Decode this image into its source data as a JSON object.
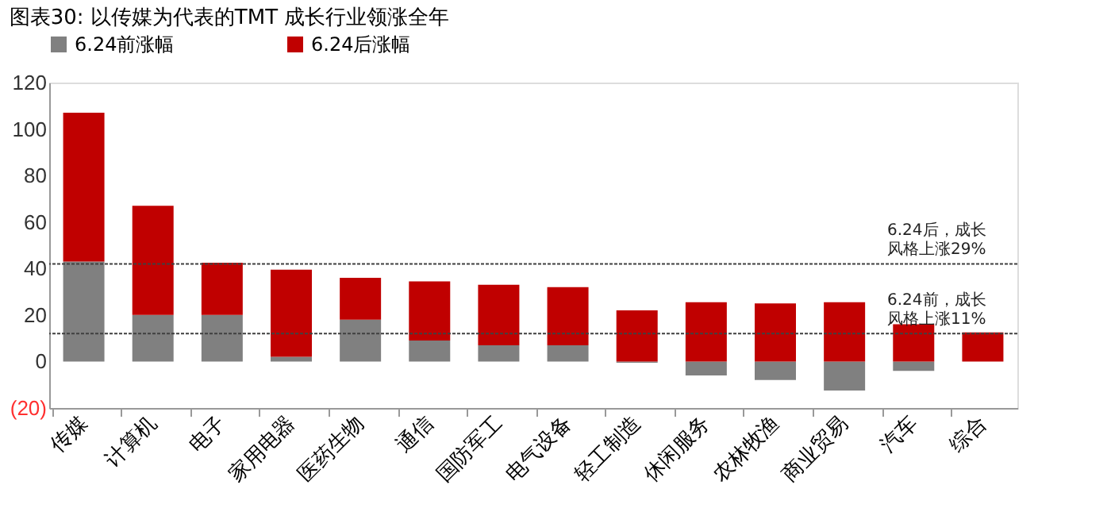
{
  "chart_data": {
    "type": "bar",
    "title": "图表30:   以传媒为代表的TMT 成长行业领涨全年",
    "categories": [
      "传媒",
      "计算机",
      "电子",
      "家用电器",
      "医药生物",
      "通信",
      "国防军工",
      "电气设备",
      "轻工制造",
      "休闲服务",
      "农林牧渔",
      "商业贸易",
      "汽车",
      "综合"
    ],
    "stacked": true,
    "series": [
      {
        "name": "6.24前涨幅",
        "color": "#808080",
        "values": [
          43,
          20,
          20,
          2,
          18,
          9,
          7,
          7,
          -0.5,
          -6,
          -8,
          -12.5,
          -4,
          0
        ]
      },
      {
        "name": "6.24后涨幅",
        "color": "#c00000",
        "values": [
          64,
          47,
          22.5,
          37.5,
          18,
          25.5,
          26,
          25,
          22,
          25.5,
          25,
          25.5,
          16,
          12.5
        ]
      }
    ],
    "ylim": [
      -20,
      120
    ],
    "yticks": [
      {
        "value": -20,
        "label": "(20)"
      },
      0,
      20,
      40,
      60,
      80,
      100,
      120
    ],
    "ref_lines": [
      {
        "axis": "y",
        "value": 42,
        "label": "6.24后，成长风格上涨29%",
        "color": "#404040",
        "line_style": "dotted"
      },
      {
        "axis": "y",
        "value": 12,
        "label": "6.24前，成长风格上涨11%",
        "color": "#404040",
        "line_style": "dotted"
      }
    ],
    "grid": false,
    "legend": "top"
  }
}
